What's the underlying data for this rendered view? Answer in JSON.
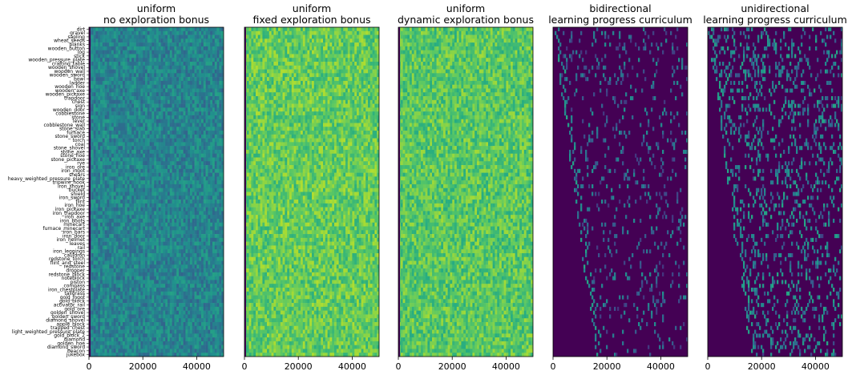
{
  "chart_data": {
    "type": "heatmap",
    "shared_y_categories": [
      "dirt",
      "gravel",
      "sapling",
      "wheat_seeds",
      "planks",
      "wooden_button",
      "log",
      "stick",
      "wooden_pressure_plate",
      "crafting_table",
      "wooden_shovel",
      "wooden_wall",
      "wooden_sword",
      "bowl",
      "ladder",
      "wooden_hoe",
      "wooden_axe",
      "wooden_pickaxe",
      "trapdoor",
      "chest",
      "sign",
      "wooden_door",
      "cobblestone",
      "stone",
      "lever",
      "cobblestone_wall",
      "stone_slab",
      "furnace",
      "stone_sword",
      "torch",
      "coal",
      "stone_shovel",
      "stone_axe",
      "stone_hoe",
      "stone_pickaxe",
      "rye",
      "iron_ore",
      "iron_ingot",
      "shears",
      "heavy_weighted_pressure_plate",
      "tripwire_hook",
      "iron_shovel",
      "bucket",
      "shield",
      "iron_sword",
      "flint",
      "iron_hoe",
      "iron_pickaxe",
      "iron_trapdoor",
      "iron_axe",
      "iron_boots",
      "minecart",
      "furnace_minecart",
      "iron_bars",
      "iron_door",
      "iron_helmet",
      "leaves",
      "rail",
      "iron_leggings",
      "cauldron",
      "redstone_torch",
      "flint_and_steel",
      "redstone",
      "dropper",
      "redstone_block",
      "noteblock",
      "piston",
      "compass",
      "iron_chestplate",
      "tallgrass",
      "gold_ingot",
      "gold_block",
      "activator_rail",
      "gold_ore",
      "golden_shovel",
      "golden_sword",
      "diamond_shovel",
      "apple_block",
      "trapped_chest",
      "light_weighted_pressure_plate",
      "gold_block_2",
      "diamond",
      "golden_hoe",
      "diamond_sword",
      "beacon",
      "jukebox"
    ],
    "x_ticks": [
      0,
      20000,
      40000
    ],
    "xlim": [
      0,
      50000
    ],
    "colormap": "viridis",
    "panels": [
      {
        "title_line1": "uniform",
        "title_line2": "no exploration bonus"
      },
      {
        "title_line1": "uniform",
        "title_line2": "fixed exploration bonus"
      },
      {
        "title_line1": "uniform",
        "title_line2": "dynamic exploration bonus"
      },
      {
        "title_line1": "bidirectional",
        "title_line2": "learning progress curriculum"
      },
      {
        "title_line1": "unidirectional",
        "title_line2": "learning progress curriculum"
      }
    ]
  }
}
